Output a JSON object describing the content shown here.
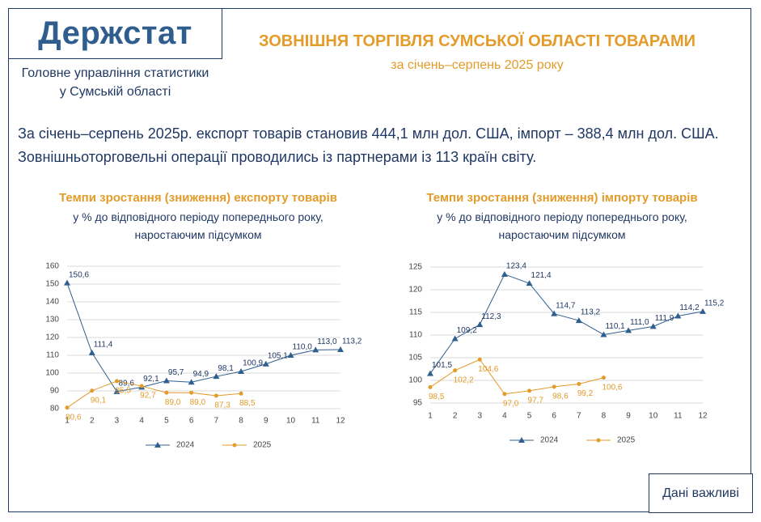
{
  "header": {
    "logo": "Держстат",
    "title": "ЗОВНІШНЯ ТОРГІВЛЯ СУМСЬКОЇ ОБЛАСТІ ТОВАРАМИ",
    "subtitle": "за січень–серпень 2025 року",
    "org": [
      "Головне управління статистики",
      "у Сумській області"
    ]
  },
  "summary": [
    "За січень–серпень 2025р. експорт товарів становив 444,1 млн дол. США, імпорт – 388,4 млн дол. США.",
    "Зовнішньоторговельні операції проводились із партнерами із 113 країн світу."
  ],
  "button": "Дані важливі",
  "chart_data": [
    {
      "type": "line",
      "title": "Темпи зростання (зниження) експорту товарів",
      "subtitle": [
        "у % до відповідного періоду попереднього року,",
        "наростаючим підсумком"
      ],
      "categories": [
        "1",
        "2",
        "3",
        "4",
        "5",
        "6",
        "7",
        "8",
        "9",
        "10",
        "11",
        "12"
      ],
      "ylim": [
        80,
        160
      ],
      "yticks": [
        80,
        90,
        100,
        110,
        120,
        130,
        140,
        150,
        160
      ],
      "grid": true,
      "series": [
        {
          "name": "2024",
          "color": "#2f5f8f",
          "marker": "triangle",
          "values": [
            150.6,
            111.4,
            89.6,
            92.1,
            95.7,
            94.9,
            98.1,
            100.9,
            105.1,
            110.0,
            113.0,
            113.2
          ],
          "value_labels": [
            "150,6",
            "111,4",
            "89,6",
            "92,1",
            "95,7",
            "94,9",
            "98,1",
            "100,9",
            "105,1",
            "110,0",
            "113,0",
            "113,2"
          ]
        },
        {
          "name": "2025",
          "color": "#e39b2a",
          "marker": "circle",
          "values": [
            80.6,
            90.1,
            95.5,
            92.7,
            89.0,
            89.0,
            87.3,
            88.5,
            null,
            null,
            null,
            null
          ],
          "value_labels": [
            "80,6",
            "90,1",
            "95,5",
            "92,7",
            "89,0",
            "89,0",
            "87,3",
            "88,5",
            null,
            null,
            null,
            null
          ]
        }
      ]
    },
    {
      "type": "line",
      "title": "Темпи зростання (зниження) імпорту товарів",
      "subtitle": [
        "у % до відповідного періоду попереднього року,",
        "наростаючим підсумком"
      ],
      "categories": [
        "1",
        "2",
        "3",
        "4",
        "5",
        "6",
        "7",
        "8",
        "9",
        "10",
        "11",
        "12"
      ],
      "ylim": [
        95,
        125
      ],
      "yticks": [
        95,
        100,
        105,
        110,
        115,
        120,
        125
      ],
      "grid": true,
      "series": [
        {
          "name": "2024",
          "color": "#2f5f8f",
          "marker": "triangle",
          "values": [
            101.5,
            109.2,
            112.3,
            123.4,
            121.4,
            114.7,
            113.2,
            110.1,
            111.0,
            111.9,
            114.2,
            115.2
          ],
          "value_labels": [
            "101,5",
            "109,2",
            "112,3",
            "123,4",
            "121,4",
            "114,7",
            "113,2",
            "110,1",
            "111,0",
            "111,9",
            "114,2",
            "115,2"
          ]
        },
        {
          "name": "2025",
          "color": "#e39b2a",
          "marker": "circle",
          "values": [
            98.5,
            102.2,
            104.6,
            97.0,
            97.7,
            98.6,
            99.2,
            100.6,
            null,
            null,
            null,
            null
          ],
          "value_labels": [
            "98,5",
            "102,2",
            "104,6",
            "97,0",
            "97,7",
            "98,6",
            "99,2",
            "100,6",
            null,
            null,
            null,
            null
          ]
        }
      ]
    }
  ]
}
